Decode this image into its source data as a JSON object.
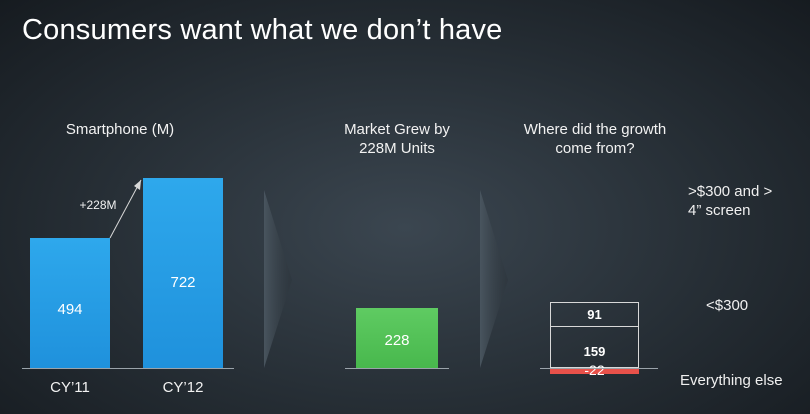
{
  "title": "Consumers want what we don’t have",
  "chart_data": [
    {
      "type": "bar",
      "title": "Smartphone (M)",
      "categories": [
        "CY’11",
        "CY’12"
      ],
      "values": [
        494,
        722
      ],
      "annotation": "+228M",
      "ylim": [
        0,
        722
      ],
      "colors": {
        "bar": "#2a9fe6"
      }
    },
    {
      "type": "bar",
      "title": "Market Grew by 228M Units",
      "categories": [
        ""
      ],
      "values": [
        228
      ],
      "colors": {
        "bar": "#55c158"
      }
    },
    {
      "type": "bar",
      "title": "Where did the growth come from?",
      "stacked": true,
      "segments": [
        {
          "label": ">$300 and > 4” screen",
          "value": 91
        },
        {
          "label": "<$300",
          "value": 159
        },
        {
          "label": "Everything else",
          "value": -22
        }
      ],
      "colors": {
        "negative": "#e8514a",
        "outline": "#d8d8d8"
      }
    }
  ]
}
